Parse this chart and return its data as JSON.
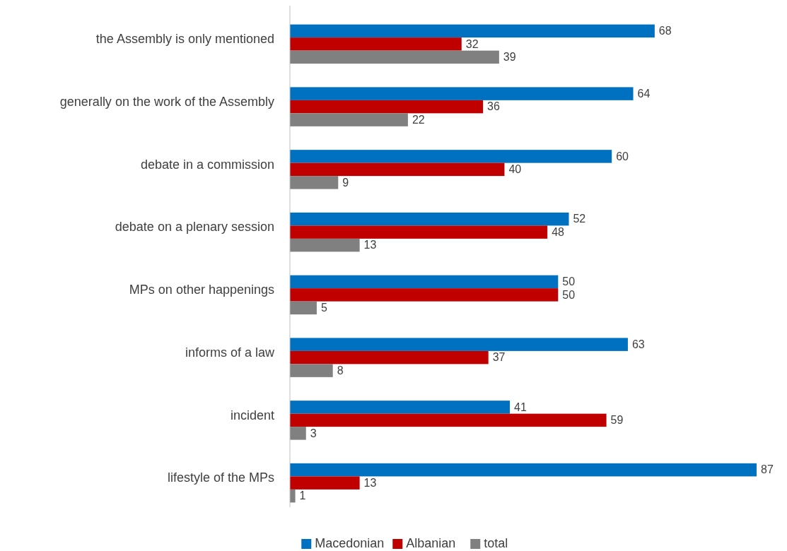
{
  "chart_data": {
    "type": "bar",
    "orientation": "horizontal",
    "categories": [
      "the Assembly is only mentioned",
      "generally on the work of the Assembly",
      "debate in a commission",
      "debate on a plenary session",
      "MPs on other happenings",
      "informs of a law",
      "incident",
      "lifestyle of the MPs"
    ],
    "series": [
      {
        "name": "Macedonian",
        "color": "#0070c0",
        "values": [
          68,
          64,
          60,
          52,
          50,
          63,
          41,
          87
        ]
      },
      {
        "name": "Albanian",
        "color": "#c00000",
        "values": [
          32,
          36,
          40,
          48,
          50,
          37,
          59,
          13
        ]
      },
      {
        "name": "total",
        "color": "#808080",
        "values": [
          39,
          22,
          9,
          13,
          5,
          8,
          3,
          1
        ]
      }
    ],
    "data_labels": true,
    "legend": "bottom",
    "grid": false
  }
}
